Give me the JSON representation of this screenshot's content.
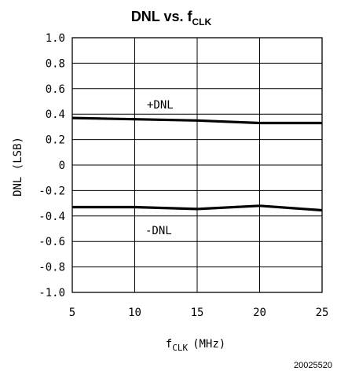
{
  "chart_data": {
    "type": "line",
    "title": {
      "main": "DNL vs. f",
      "sub": "CLK"
    },
    "xlabel": {
      "main": "f",
      "sub": "CLK",
      "unit": "(MHz)"
    },
    "ylabel": "DNL (LSB)",
    "xlim": [
      5,
      25
    ],
    "ylim": [
      -1.0,
      1.0
    ],
    "x_ticks": [
      5,
      10,
      15,
      20,
      25
    ],
    "x_tick_labels": [
      "5",
      "10",
      "15",
      "20",
      "25"
    ],
    "y_ticks": [
      1.0,
      0.8,
      0.6,
      0.4,
      0.2,
      0,
      -0.2,
      -0.4,
      -0.6,
      -0.8,
      -1.0
    ],
    "y_tick_labels": [
      "1.0",
      "0.8",
      "0.6",
      "0.4",
      "0.2",
      "0",
      "-0.2",
      "-0.4",
      "-0.6",
      "-0.8",
      "-1.0"
    ],
    "grid": true,
    "series": [
      {
        "name": "+DNL",
        "x": [
          5,
          10,
          15,
          20,
          25
        ],
        "y": [
          0.37,
          0.36,
          0.35,
          0.33,
          0.33
        ]
      },
      {
        "name": "-DNL",
        "x": [
          5,
          10,
          15,
          20,
          25
        ],
        "y": [
          -0.33,
          -0.33,
          -0.345,
          -0.32,
          -0.355
        ]
      }
    ],
    "annotations": [
      "+DNL",
      "-DNL"
    ],
    "figure_id": "20025520"
  }
}
